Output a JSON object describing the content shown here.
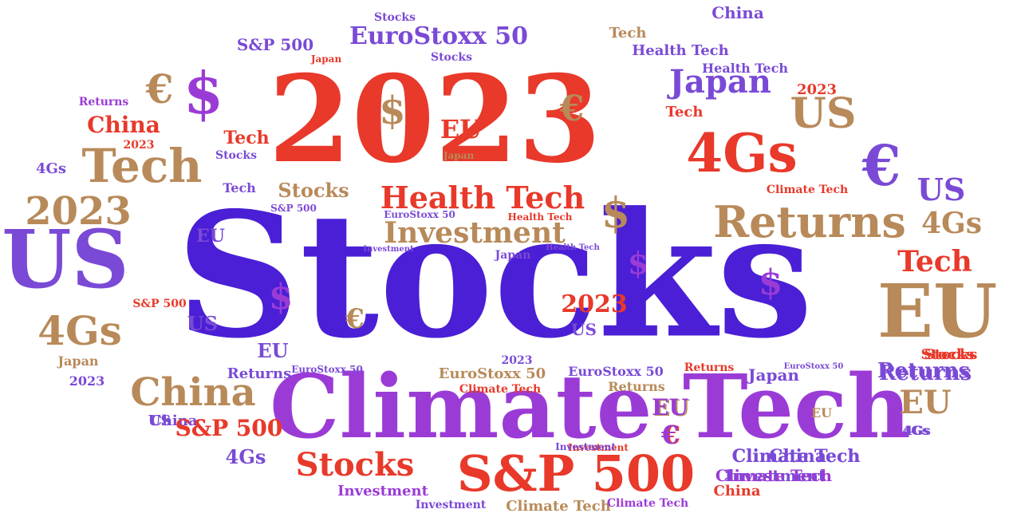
{
  "palette": {
    "red": "#e8392a",
    "indigo": "#4a1fd6",
    "purple": "#9b3bd6",
    "tan": "#b88a5a",
    "violet": "#7a4ad6"
  },
  "words": [
    {
      "text": "Stocks",
      "color": "indigo"
    },
    {
      "text": "2023",
      "color": "red"
    },
    {
      "text": "Climate Tech",
      "color": "purple"
    },
    {
      "text": "S&P 500",
      "color": "red"
    },
    {
      "text": "4Gs",
      "color": "red"
    },
    {
      "text": "Tech",
      "color": "tan"
    },
    {
      "text": "US",
      "color": "violet"
    },
    {
      "text": "EU",
      "color": "tan"
    },
    {
      "text": "€",
      "color": "violet"
    },
    {
      "text": "$",
      "color": "purple"
    },
    {
      "text": "€",
      "color": "tan"
    },
    {
      "text": "Returns",
      "color": "tan"
    },
    {
      "text": "Health Tech",
      "color": "red"
    },
    {
      "text": "Investment",
      "color": "tan"
    },
    {
      "text": "Japan",
      "color": "violet"
    },
    {
      "text": "EuroStoxx 50",
      "color": "violet"
    },
    {
      "text": "2023",
      "color": "tan"
    },
    {
      "text": "China",
      "color": "tan"
    },
    {
      "text": "Stocks",
      "color": "red"
    },
    {
      "text": "US",
      "color": "tan"
    },
    {
      "text": "4Gs",
      "color": "tan"
    },
    {
      "text": "Tech",
      "color": "red"
    },
    {
      "text": "China",
      "color": "red"
    },
    {
      "text": "US",
      "color": "violet"
    },
    {
      "text": "EU",
      "color": "tan"
    },
    {
      "text": "Returns",
      "color": "violet"
    },
    {
      "text": "Climate Tech",
      "color": "violet"
    },
    {
      "text": "Investment",
      "color": "violet"
    },
    {
      "text": "S&P 500",
      "color": "red"
    },
    {
      "text": "China",
      "color": "violet"
    },
    {
      "text": "Tech",
      "color": "tan"
    },
    {
      "text": "Health Tech",
      "color": "violet"
    },
    {
      "text": "Health Tech",
      "color": "violet"
    },
    {
      "text": "S&P 500",
      "color": "violet"
    },
    {
      "text": "Stocks",
      "color": "violet"
    },
    {
      "text": "Japan",
      "color": "red"
    },
    {
      "text": "Stocks",
      "color": "violet"
    },
    {
      "text": "2023",
      "color": "red"
    },
    {
      "text": "$",
      "color": "tan"
    },
    {
      "text": "€",
      "color": "tan"
    },
    {
      "text": "EU",
      "color": "red"
    },
    {
      "text": "Tech",
      "color": "red"
    },
    {
      "text": "Stocks",
      "color": "violet"
    },
    {
      "text": "Japan",
      "color": "tan"
    },
    {
      "text": "Returns",
      "color": "purple"
    },
    {
      "text": "2023",
      "color": "red"
    },
    {
      "text": "4Gs",
      "color": "violet"
    },
    {
      "text": "Tech",
      "color": "violet"
    },
    {
      "text": "Stocks",
      "color": "tan"
    },
    {
      "text": "S&P 500",
      "color": "violet"
    },
    {
      "text": "EU",
      "color": "violet"
    },
    {
      "text": "EuroStoxx 50",
      "color": "violet"
    },
    {
      "text": "Health Tech",
      "color": "red"
    },
    {
      "text": "Investment",
      "color": "violet"
    },
    {
      "text": "Health Tech",
      "color": "violet"
    },
    {
      "text": "Japan",
      "color": "violet"
    },
    {
      "text": "Climate Tech",
      "color": "red"
    },
    {
      "text": "$",
      "color": "tan"
    },
    {
      "text": "$",
      "color": "purple"
    },
    {
      "text": "$",
      "color": "purple"
    },
    {
      "text": "$",
      "color": "purple"
    },
    {
      "text": "€",
      "color": "tan"
    },
    {
      "text": "2023",
      "color": "red"
    },
    {
      "text": "US",
      "color": "violet"
    },
    {
      "text": "US",
      "color": "violet"
    },
    {
      "text": "EU",
      "color": "violet"
    },
    {
      "text": "Returns",
      "color": "violet"
    },
    {
      "text": "EuroStoxx 50",
      "color": "violet"
    },
    {
      "text": "2023",
      "color": "violet"
    },
    {
      "text": "EuroStoxx 50",
      "color": "tan"
    },
    {
      "text": "Climate Tech",
      "color": "red"
    },
    {
      "text": "EuroStoxx 50",
      "color": "violet"
    },
    {
      "text": "Returns",
      "color": "red"
    },
    {
      "text": "Returns",
      "color": "tan"
    },
    {
      "text": "EuroStoxx 50",
      "color": "violet"
    },
    {
      "text": "Japan",
      "color": "violet"
    },
    {
      "text": "Stocks",
      "color": "red"
    },
    {
      "text": "Returns",
      "color": "violet"
    },
    {
      "text": "Tech",
      "color": "red"
    },
    {
      "text": "€",
      "color": "red"
    },
    {
      "text": "S&P 500",
      "color": "red"
    },
    {
      "text": "China",
      "color": "violet"
    },
    {
      "text": "EU",
      "color": "tan"
    },
    {
      "text": "4Gs",
      "color": "tan"
    },
    {
      "text": "EU",
      "color": "tan"
    },
    {
      "text": "4Gs",
      "color": "violet"
    },
    {
      "text": "Japan",
      "color": "tan"
    },
    {
      "text": "2023",
      "color": "violet"
    },
    {
      "text": "US",
      "color": "violet"
    },
    {
      "text": "S&P 500",
      "color": "red"
    },
    {
      "text": "4Gs",
      "color": "violet"
    },
    {
      "text": "Stocks",
      "color": "red"
    },
    {
      "text": "China",
      "color": "violet"
    },
    {
      "text": "Climate Tech",
      "color": "violet"
    },
    {
      "text": "Climate Tech",
      "color": "purple"
    },
    {
      "text": "Investment",
      "color": "red"
    },
    {
      "text": "Investment",
      "color": "violet"
    },
    {
      "text": "Investment",
      "color": "purple"
    },
    {
      "text": "Investment",
      "color": "violet"
    },
    {
      "text": "China",
      "color": "red"
    },
    {
      "text": "Climate Tech",
      "color": "tan"
    },
    {
      "text": "Climate Tech",
      "color": "purple"
    },
    {
      "text": "EU",
      "color": "purple"
    },
    {
      "text": "€",
      "color": "purple"
    },
    {
      "text": "4Gs",
      "color": "violet"
    }
  ]
}
